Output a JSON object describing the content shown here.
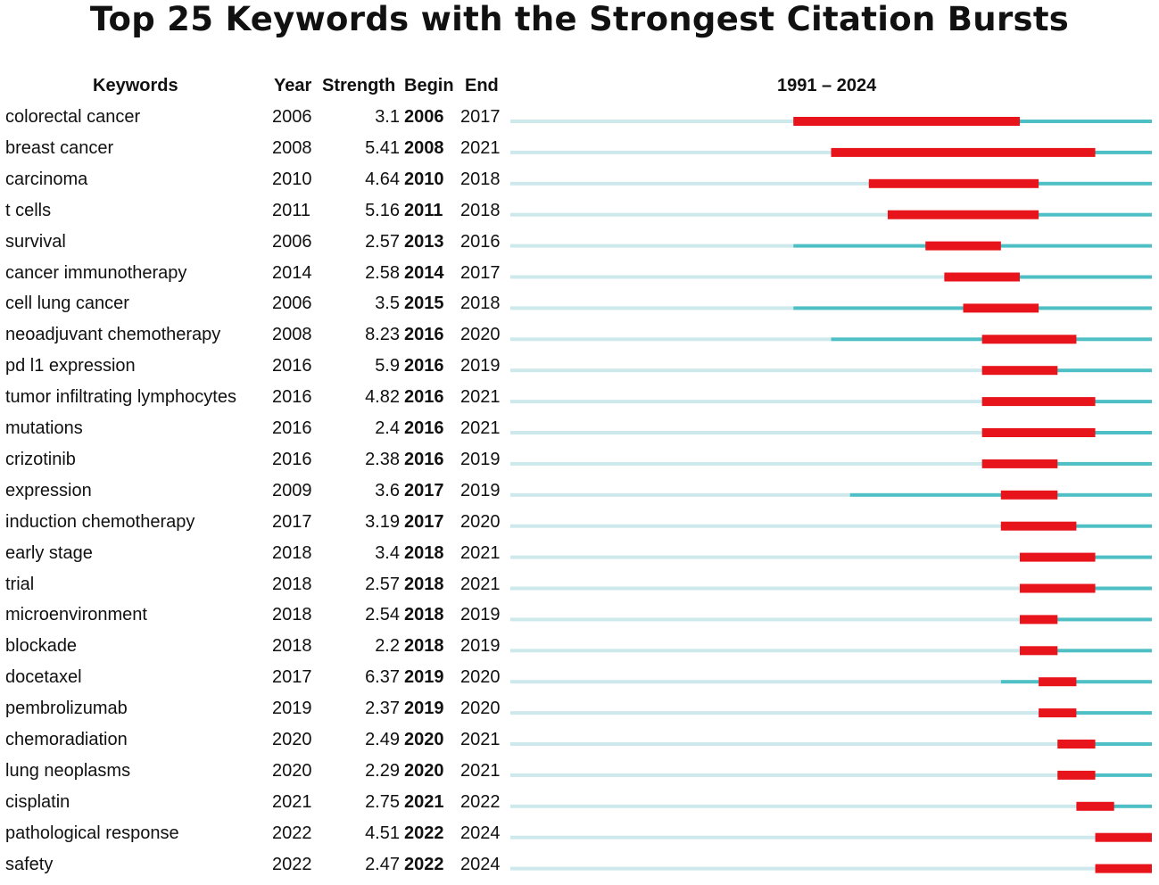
{
  "chart_data": {
    "type": "table",
    "title": "Top 25 Keywords with the Strongest Citation Bursts",
    "headers": {
      "keyword": "Keywords",
      "year": "Year",
      "strength": "Strength",
      "begin": "Begin",
      "end": "End",
      "range": "1991 – 2024"
    },
    "year_range": [
      1991,
      2024
    ],
    "rows": [
      {
        "keyword": "colorectal cancer",
        "year": 2006,
        "strength": "3.1",
        "begin": 2006,
        "end": 2017
      },
      {
        "keyword": "breast cancer",
        "year": 2008,
        "strength": "5.41",
        "begin": 2008,
        "end": 2021
      },
      {
        "keyword": "carcinoma",
        "year": 2010,
        "strength": "4.64",
        "begin": 2010,
        "end": 2018
      },
      {
        "keyword": "t cells",
        "year": 2011,
        "strength": "5.16",
        "begin": 2011,
        "end": 2018
      },
      {
        "keyword": "survival",
        "year": 2006,
        "strength": "2.57",
        "begin": 2013,
        "end": 2016
      },
      {
        "keyword": "cancer immunotherapy",
        "year": 2014,
        "strength": "2.58",
        "begin": 2014,
        "end": 2017
      },
      {
        "keyword": "cell lung cancer",
        "year": 2006,
        "strength": "3.5",
        "begin": 2015,
        "end": 2018
      },
      {
        "keyword": "neoadjuvant chemotherapy",
        "year": 2008,
        "strength": "8.23",
        "begin": 2016,
        "end": 2020
      },
      {
        "keyword": "pd l1 expression",
        "year": 2016,
        "strength": "5.9",
        "begin": 2016,
        "end": 2019
      },
      {
        "keyword": "tumor infiltrating lymphocytes",
        "year": 2016,
        "strength": "4.82",
        "begin": 2016,
        "end": 2021
      },
      {
        "keyword": "mutations",
        "year": 2016,
        "strength": "2.4",
        "begin": 2016,
        "end": 2021
      },
      {
        "keyword": "crizotinib",
        "year": 2016,
        "strength": "2.38",
        "begin": 2016,
        "end": 2019
      },
      {
        "keyword": "expression",
        "year": 2009,
        "strength": "3.6",
        "begin": 2017,
        "end": 2019
      },
      {
        "keyword": "induction chemotherapy",
        "year": 2017,
        "strength": "3.19",
        "begin": 2017,
        "end": 2020
      },
      {
        "keyword": "early stage",
        "year": 2018,
        "strength": "3.4",
        "begin": 2018,
        "end": 2021
      },
      {
        "keyword": "trial",
        "year": 2018,
        "strength": "2.57",
        "begin": 2018,
        "end": 2021
      },
      {
        "keyword": "microenvironment",
        "year": 2018,
        "strength": "2.54",
        "begin": 2018,
        "end": 2019
      },
      {
        "keyword": "blockade",
        "year": 2018,
        "strength": "2.2",
        "begin": 2018,
        "end": 2019
      },
      {
        "keyword": "docetaxel",
        "year": 2017,
        "strength": "6.37",
        "begin": 2019,
        "end": 2020
      },
      {
        "keyword": "pembrolizumab",
        "year": 2019,
        "strength": "2.37",
        "begin": 2019,
        "end": 2020
      },
      {
        "keyword": "chemoradiation",
        "year": 2020,
        "strength": "2.49",
        "begin": 2020,
        "end": 2021
      },
      {
        "keyword": "lung neoplasms",
        "year": 2020,
        "strength": "2.29",
        "begin": 2020,
        "end": 2021
      },
      {
        "keyword": "cisplatin",
        "year": 2021,
        "strength": "2.75",
        "begin": 2021,
        "end": 2022
      },
      {
        "keyword": "pathological response",
        "year": 2022,
        "strength": "4.51",
        "begin": 2022,
        "end": 2024
      },
      {
        "keyword": "safety",
        "year": 2022,
        "strength": "2.47",
        "begin": 2022,
        "end": 2024
      }
    ]
  },
  "colors": {
    "before": "#cde9ec",
    "after": "#4ebfc4",
    "burst": "#e8141b"
  }
}
